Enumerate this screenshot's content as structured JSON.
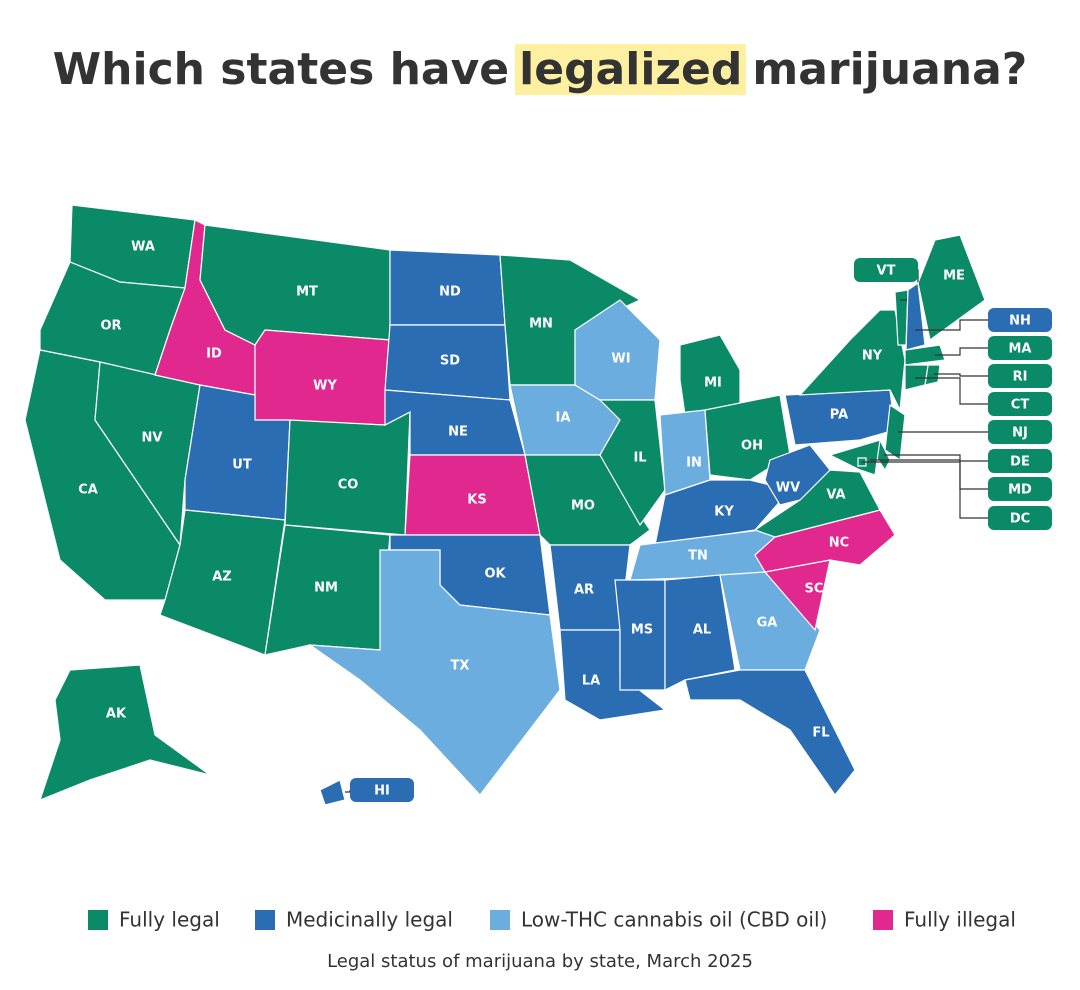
{
  "title": {
    "before": "Which states have",
    "highlight": "legalized",
    "after": "marijuana?"
  },
  "legend": [
    {
      "name": "Fully legal",
      "color": "#0b8a68"
    },
    {
      "name": "Medicinally legal",
      "color": "#2a6db3"
    },
    {
      "name": "Low-THC cannabis oil (CBD oil)",
      "color": "#6badde"
    },
    {
      "name": "Fully illegal",
      "color": "#e0288f"
    }
  ],
  "states": [
    {
      "label": "WA",
      "status": "Fully legal"
    },
    {
      "label": "OR",
      "status": "Fully legal"
    },
    {
      "label": "CA",
      "status": "Fully legal"
    },
    {
      "label": "NV",
      "status": "Fully legal"
    },
    {
      "label": "ID",
      "status": "Fully illegal"
    },
    {
      "label": "MT",
      "status": "Fully legal"
    },
    {
      "label": "WY",
      "status": "Fully illegal"
    },
    {
      "label": "UT",
      "status": "Medicinally legal"
    },
    {
      "label": "CO",
      "status": "Fully legal"
    },
    {
      "label": "AZ",
      "status": "Fully legal"
    },
    {
      "label": "NM",
      "status": "Fully legal"
    },
    {
      "label": "ND",
      "status": "Medicinally legal"
    },
    {
      "label": "SD",
      "status": "Medicinally legal"
    },
    {
      "label": "NE",
      "status": "Medicinally legal"
    },
    {
      "label": "KS",
      "status": "Fully illegal"
    },
    {
      "label": "OK",
      "status": "Medicinally legal"
    },
    {
      "label": "TX",
      "status": "Low-THC cannabis oil (CBD oil)"
    },
    {
      "label": "MN",
      "status": "Fully legal"
    },
    {
      "label": "IA",
      "status": "Low-THC cannabis oil (CBD oil)"
    },
    {
      "label": "MO",
      "status": "Fully legal"
    },
    {
      "label": "AR",
      "status": "Medicinally legal"
    },
    {
      "label": "LA",
      "status": "Medicinally legal"
    },
    {
      "label": "WI",
      "status": "Low-THC cannabis oil (CBD oil)"
    },
    {
      "label": "IL",
      "status": "Fully legal"
    },
    {
      "label": "MI",
      "status": "Fully legal"
    },
    {
      "label": "IN",
      "status": "Low-THC cannabis oil (CBD oil)"
    },
    {
      "label": "OH",
      "status": "Fully legal"
    },
    {
      "label": "KY",
      "status": "Medicinally legal"
    },
    {
      "label": "TN",
      "status": "Low-THC cannabis oil (CBD oil)"
    },
    {
      "label": "MS",
      "status": "Medicinally legal"
    },
    {
      "label": "AL",
      "status": "Medicinally legal"
    },
    {
      "label": "GA",
      "status": "Low-THC cannabis oil (CBD oil)"
    },
    {
      "label": "FL",
      "status": "Medicinally legal"
    },
    {
      "label": "SC",
      "status": "Fully illegal"
    },
    {
      "label": "NC",
      "status": "Fully illegal"
    },
    {
      "label": "VA",
      "status": "Fully legal"
    },
    {
      "label": "WV",
      "status": "Medicinally legal"
    },
    {
      "label": "PA",
      "status": "Medicinally legal"
    },
    {
      "label": "NY",
      "status": "Fully legal"
    },
    {
      "label": "ME",
      "status": "Fully legal"
    },
    {
      "label": "AK",
      "status": "Fully legal"
    },
    {
      "label": "VT",
      "status": "Fully legal"
    },
    {
      "label": "NH",
      "status": "Medicinally legal"
    },
    {
      "label": "MA",
      "status": "Fully legal"
    },
    {
      "label": "RI",
      "status": "Fully legal"
    },
    {
      "label": "CT",
      "status": "Fully legal"
    },
    {
      "label": "NJ",
      "status": "Fully legal"
    },
    {
      "label": "DE",
      "status": "Fully legal"
    },
    {
      "label": "MD",
      "status": "Fully legal"
    },
    {
      "label": "DC",
      "status": "Fully legal"
    },
    {
      "label": "HI",
      "status": "Medicinally legal"
    }
  ],
  "caption": "Legal status of marijuana by state, March 2025"
}
